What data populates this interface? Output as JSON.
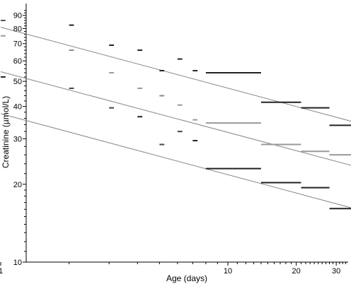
{
  "chart_data": {
    "type": "scatter",
    "xlabel": "Age (days)",
    "ylabel": "Creatinine (µmol/L)",
    "xscale": "log",
    "yscale": "log",
    "xlim": [
      1,
      40
    ],
    "ylim": [
      10,
      95
    ],
    "grid": false,
    "x_ticks": [
      1,
      10,
      20,
      30
    ],
    "y_ticks": [
      10,
      20,
      30,
      40,
      50,
      60,
      70,
      80,
      90
    ],
    "lines": [
      {
        "x": [
          1,
          36
        ],
        "y": [
          81,
          34.8
        ]
      },
      {
        "x": [
          1,
          36
        ],
        "y": [
          54.5,
          23.5
        ]
      },
      {
        "x": [
          1,
          36
        ],
        "y": [
          37.5,
          16.1
        ]
      }
    ],
    "bars": [
      {
        "x": [
          1,
          1.05
        ],
        "y": 86,
        "color": "#555555"
      },
      {
        "x": [
          1,
          1.05
        ],
        "y": 75,
        "color": "#999999"
      },
      {
        "x": [
          1,
          1.05
        ],
        "y": 52,
        "color": "#222222"
      },
      {
        "x": [
          2,
          2.1
        ],
        "y": 82.5,
        "color": "#222222"
      },
      {
        "x": [
          2,
          2.1
        ],
        "y": 66,
        "color": "#888888"
      },
      {
        "x": [
          2,
          2.1
        ],
        "y": 47,
        "color": "#444444"
      },
      {
        "x": [
          3,
          3.15
        ],
        "y": 69,
        "color": "#222222"
      },
      {
        "x": [
          3,
          3.15
        ],
        "y": 54,
        "color": "#999999"
      },
      {
        "x": [
          3,
          3.15
        ],
        "y": 39.5,
        "color": "#444444"
      },
      {
        "x": [
          4,
          4.2
        ],
        "y": 66,
        "color": "#222222"
      },
      {
        "x": [
          4,
          4.2
        ],
        "y": 47,
        "color": "#999999"
      },
      {
        "x": [
          4,
          4.2
        ],
        "y": 36.5,
        "color": "#222222"
      },
      {
        "x": [
          5,
          5.25
        ],
        "y": 55,
        "color": "#222222"
      },
      {
        "x": [
          5,
          5.25
        ],
        "y": 44,
        "color": "#888888"
      },
      {
        "x": [
          5,
          5.25
        ],
        "y": 28.5,
        "color": "#444444"
      },
      {
        "x": [
          6,
          6.3
        ],
        "y": 61,
        "color": "#222222"
      },
      {
        "x": [
          6,
          6.3
        ],
        "y": 40.5,
        "color": "#999999"
      },
      {
        "x": [
          6,
          6.3
        ],
        "y": 32,
        "color": "#444444"
      },
      {
        "x": [
          7,
          7.35
        ],
        "y": 55,
        "color": "#222222"
      },
      {
        "x": [
          7,
          7.35
        ],
        "y": 35.5,
        "color": "#999999"
      },
      {
        "x": [
          7,
          7.35
        ],
        "y": 29.5,
        "color": "#222222"
      },
      {
        "x": [
          8,
          14
        ],
        "y": 54,
        "color": "#222222"
      },
      {
        "x": [
          8,
          14
        ],
        "y": 34.5,
        "color": "#999999"
      },
      {
        "x": [
          8,
          14
        ],
        "y": 23,
        "color": "#222222"
      },
      {
        "x": [
          14,
          21
        ],
        "y": 41.5,
        "color": "#222222"
      },
      {
        "x": [
          14,
          21
        ],
        "y": 28.5,
        "color": "#999999"
      },
      {
        "x": [
          14,
          21
        ],
        "y": 20.3,
        "color": "#222222"
      },
      {
        "x": [
          21,
          28
        ],
        "y": 39.5,
        "color": "#222222"
      },
      {
        "x": [
          21,
          28
        ],
        "y": 26.8,
        "color": "#999999"
      },
      {
        "x": [
          21,
          28
        ],
        "y": 19.4,
        "color": "#222222"
      },
      {
        "x": [
          28,
          36
        ],
        "y": 33.8,
        "color": "#222222"
      },
      {
        "x": [
          28,
          36
        ],
        "y": 26,
        "color": "#999999"
      },
      {
        "x": [
          28,
          36
        ],
        "y": 16.1,
        "color": "#222222"
      }
    ]
  }
}
